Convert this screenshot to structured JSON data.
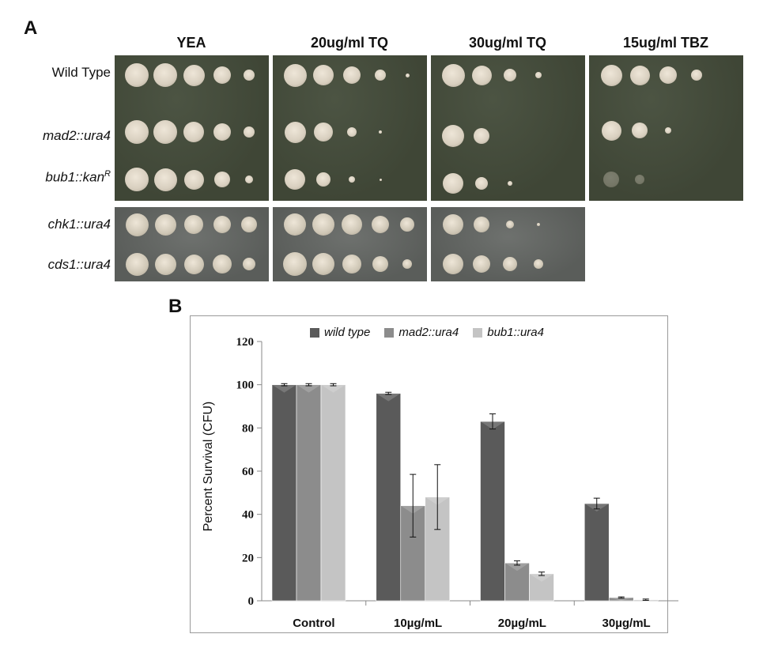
{
  "panel_a": {
    "letter": "A",
    "conditions": [
      "YEA",
      "20ug/ml TQ",
      "30ug/ml TQ",
      "15ug/ml TBZ"
    ],
    "strains": [
      {
        "label": "Wild Type",
        "italic": false
      },
      {
        "label": "mad2::ura4",
        "italic": true
      },
      {
        "label": "bub1::kan",
        "superscript": "R",
        "italic": true
      },
      {
        "label": "chk1::ura4",
        "italic": true
      },
      {
        "label": "cds1::ura4",
        "italic": true
      }
    ]
  },
  "panel_b": {
    "letter": "B"
  },
  "chart_data": {
    "type": "bar",
    "categories": [
      "Control",
      "10µg/mL",
      "20µg/mL",
      "30µg/mL"
    ],
    "series": [
      {
        "name": "wild type",
        "values": [
          100,
          96,
          83,
          45
        ],
        "errors": [
          0.5,
          0.5,
          3.5,
          2.5
        ],
        "color": "#5a5a5a"
      },
      {
        "name": "mad2::ura4",
        "values": [
          100,
          44,
          17.5,
          1.5
        ],
        "errors": [
          0.5,
          14.5,
          1,
          0.3
        ],
        "color": "#8c8c8c"
      },
      {
        "name": "bub1::ura4",
        "values": [
          100,
          48,
          12.5,
          0.5
        ],
        "errors": [
          0.5,
          15,
          0.8,
          0.3
        ],
        "color": "#c4c4c4"
      }
    ],
    "ylabel": "Percent Survival (CFU)",
    "xlabel": "",
    "ylim": [
      0,
      120
    ],
    "yticks": [
      0,
      20,
      40,
      60,
      80,
      100,
      120
    ],
    "legend_position": "top",
    "grid": false
  }
}
